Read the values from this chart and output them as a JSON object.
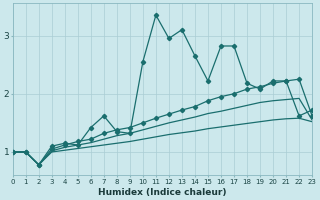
{
  "xlabel": "Humidex (Indice chaleur)",
  "bg_color": "#cce8ec",
  "line_color": "#1a6e6e",
  "grid_color": "#aacdd4",
  "x_values": [
    0,
    1,
    2,
    3,
    4,
    5,
    6,
    7,
    8,
    9,
    10,
    11,
    12,
    13,
    14,
    15,
    16,
    17,
    18,
    19,
    20,
    21,
    22,
    23
  ],
  "line_jagged": [
    1.0,
    1.0,
    0.78,
    1.1,
    1.15,
    1.12,
    1.42,
    1.62,
    1.35,
    1.32,
    2.55,
    3.35,
    2.95,
    3.1,
    2.65,
    2.22,
    2.82,
    2.82,
    2.18,
    2.08,
    2.22,
    2.22,
    1.62,
    1.72
  ],
  "line_smooth_upper": [
    1.0,
    1.0,
    0.78,
    1.05,
    1.12,
    1.18,
    1.22,
    1.32,
    1.38,
    1.42,
    1.5,
    1.58,
    1.65,
    1.72,
    1.78,
    1.88,
    1.95,
    2.0,
    2.08,
    2.12,
    2.18,
    2.22,
    2.25,
    1.62
  ],
  "line_smooth_mid": [
    1.0,
    1.0,
    0.78,
    1.02,
    1.08,
    1.12,
    1.16,
    1.22,
    1.28,
    1.32,
    1.38,
    1.44,
    1.5,
    1.55,
    1.6,
    1.66,
    1.7,
    1.75,
    1.8,
    1.85,
    1.88,
    1.9,
    1.92,
    1.55
  ],
  "line_smooth_lower": [
    1.0,
    1.0,
    0.78,
    1.0,
    1.03,
    1.06,
    1.09,
    1.12,
    1.15,
    1.18,
    1.22,
    1.26,
    1.3,
    1.33,
    1.36,
    1.4,
    1.43,
    1.46,
    1.49,
    1.52,
    1.55,
    1.57,
    1.58,
    1.52
  ],
  "xlim": [
    0,
    23
  ],
  "ylim": [
    0.6,
    3.55
  ],
  "yticks": [
    1,
    2,
    3
  ],
  "xticks": [
    0,
    1,
    2,
    3,
    4,
    5,
    6,
    7,
    8,
    9,
    10,
    11,
    12,
    13,
    14,
    15,
    16,
    17,
    18,
    19,
    20,
    21,
    22,
    23
  ]
}
